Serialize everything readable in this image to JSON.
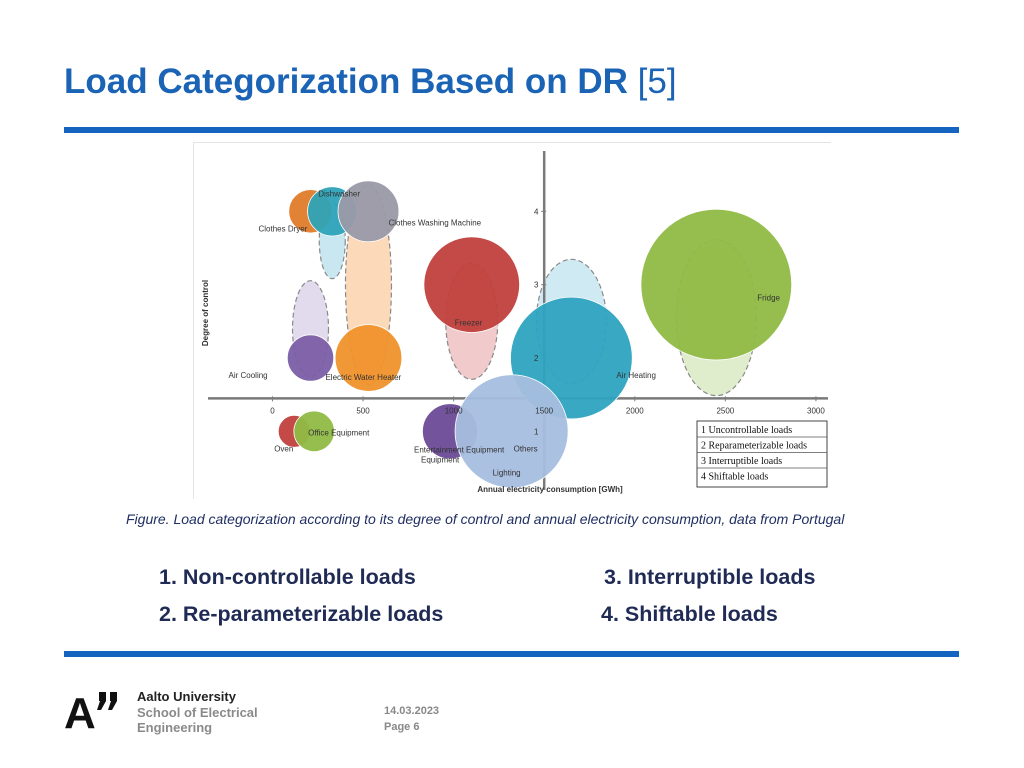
{
  "slide": {
    "title": "Load Categorization Based on DR",
    "title_ref": "[5]",
    "caption": "Figure. Load categorization according to its degree of control and annual electricity consumption, data from Portugal",
    "categories": [
      "1. Non-controllable loads",
      "2. Re-parameterizable loads",
      "3. Interruptible loads",
      "4. Shiftable loads"
    ],
    "accent_color": "#1565c0",
    "title_color": "#1a63b5"
  },
  "footer": {
    "logo_text": "A",
    "org_line1": "Aalto University",
    "org_line2": "School of Electrical",
    "org_line3": "Engineering",
    "date": "14.03.2023",
    "page": "Page 6"
  },
  "chart_data": {
    "type": "scatter",
    "xlabel": "Annual electricity consumption [GWh]",
    "ylabel": "Degree of control",
    "x_ticks": [
      "0",
      "500",
      "1000",
      "1500",
      "2000",
      "2500",
      "3000"
    ],
    "y_ticks": [
      "1",
      "2",
      "3",
      "4"
    ],
    "xlim": [
      -400,
      3050
    ],
    "ylim": [
      0.2,
      4.85
    ],
    "axis_cross": {
      "x": 1500,
      "y": 1.45
    },
    "legend": [
      "1 Uncontrollable loads",
      "2 Reparameterizable loads",
      "3 Interruptible loads",
      "4 Shiftable loads"
    ],
    "legend_position": "bottom-right",
    "points": [
      {
        "label": "Clothes Dryer",
        "x": 210,
        "y": 4.0,
        "size": 75,
        "color": "#e07b2a"
      },
      {
        "label": "Dishwasher",
        "x": 330,
        "y": 4.0,
        "size": 85,
        "color": "#2ea3b8"
      },
      {
        "label": "Clothes Washing Machine",
        "x": 530,
        "y": 4.0,
        "size": 105,
        "color": "#9a9aa8"
      },
      {
        "label": "Air Cooling",
        "x": 210,
        "y": 2.0,
        "size": 80,
        "color": "#7b5ea7"
      },
      {
        "label": "Electric Water Heater",
        "x": 530,
        "y": 2.0,
        "size": 115,
        "color": "#f0922b"
      },
      {
        "label": "Freezer",
        "x": 1100,
        "y": 3.0,
        "size": 165,
        "color": "#c0403c"
      },
      {
        "label": "Air Heating",
        "x": 1650,
        "y": 2.0,
        "size": 210,
        "color": "#2ea3c0"
      },
      {
        "label": "Fridge",
        "x": 2450,
        "y": 3.0,
        "size": 260,
        "color": "#8fbb45"
      },
      {
        "label": "Oven",
        "x": 120,
        "y": 1.0,
        "size": 55,
        "color": "#c0403c"
      },
      {
        "label": "Office Equipment",
        "x": 230,
        "y": 1.0,
        "size": 70,
        "color": "#8fbb45"
      },
      {
        "label": "Entertainment Equipment",
        "x": 980,
        "y": 1.0,
        "size": 95,
        "color": "#6b4a96"
      },
      {
        "label": "Others / Lighting",
        "x": 1320,
        "y": 1.0,
        "size": 195,
        "color": "#a7bedf"
      }
    ],
    "category_regions": [
      {
        "category": 4,
        "x": 330,
        "y": 3.6,
        "color": "#bfe3ee"
      },
      {
        "category": 4,
        "x": 530,
        "y": 3.0,
        "color": "#fbd2ad"
      },
      {
        "category": 2,
        "x": 210,
        "y": 2.4,
        "color": "#ddd3ea"
      },
      {
        "category": 3,
        "x": 1100,
        "y": 2.5,
        "color": "#eec2c2"
      },
      {
        "category": 2,
        "x": 1650,
        "y": 2.5,
        "color": "#c8e6f1"
      },
      {
        "category": 3,
        "x": 2450,
        "y": 2.55,
        "color": "#dbeac3"
      }
    ]
  }
}
